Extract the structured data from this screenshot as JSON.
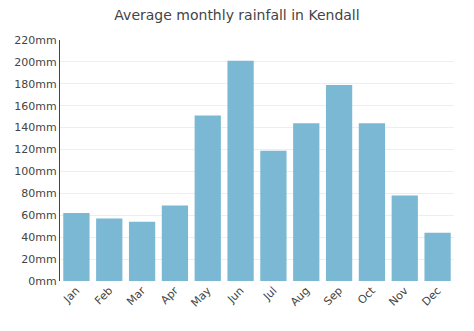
{
  "chart_data": {
    "type": "bar",
    "title": "Average monthly rainfall in Kendall",
    "categories": [
      "Jan",
      "Feb",
      "Mar",
      "Apr",
      "May",
      "Jun",
      "Jul",
      "Aug",
      "Sep",
      "Oct",
      "Nov",
      "Dec"
    ],
    "values": [
      62,
      57,
      54,
      69,
      151,
      201,
      119,
      144,
      179,
      144,
      78,
      44
    ],
    "color": "#7bb8d4",
    "ylim": [
      0,
      220
    ],
    "yticks": [
      {
        "value": 0,
        "label": "0mm"
      },
      {
        "value": 20,
        "label": "20mm"
      },
      {
        "value": 40,
        "label": "40mm"
      },
      {
        "value": 60,
        "label": "60mm"
      },
      {
        "value": 80,
        "label": "80mm"
      },
      {
        "value": 100,
        "label": "100mm"
      },
      {
        "value": 120,
        "label": "120mm"
      },
      {
        "value": 140,
        "label": "140mm"
      },
      {
        "value": 160,
        "label": "160mm"
      },
      {
        "value": 180,
        "label": "180mm"
      },
      {
        "value": 200,
        "label": "200mm"
      },
      {
        "value": 220,
        "label": "220mm"
      }
    ],
    "grid": true
  }
}
